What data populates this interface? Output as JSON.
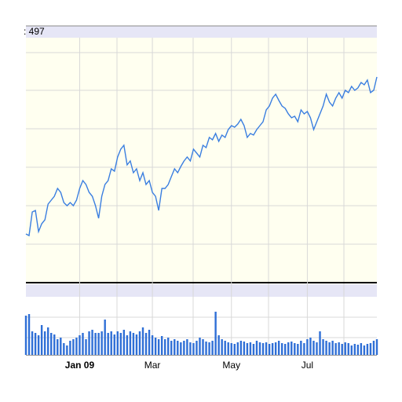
{
  "chart_data": [
    {
      "type": "line",
      "title": ": 497",
      "color": "#3a7ee0",
      "xlim": [
        0,
        111
      ],
      "ylim": [
        0,
        312
      ],
      "xticks": [
        {
          "value": 17,
          "label": "Jan 09"
        },
        {
          "value": 40,
          "label": "Mar"
        },
        {
          "value": 65,
          "label": "May"
        },
        {
          "value": 89,
          "label": "Jul"
        }
      ],
      "values": [
        62,
        60,
        90,
        92,
        65,
        75,
        80,
        100,
        105,
        110,
        120,
        115,
        102,
        98,
        102,
        98,
        105,
        120,
        130,
        125,
        115,
        110,
        98,
        82,
        110,
        125,
        130,
        145,
        142,
        160,
        170,
        175,
        150,
        155,
        140,
        145,
        130,
        140,
        125,
        130,
        115,
        110,
        92,
        120,
        120,
        125,
        135,
        145,
        140,
        148,
        155,
        160,
        155,
        170,
        165,
        160,
        175,
        172,
        185,
        182,
        190,
        180,
        188,
        185,
        195,
        200,
        198,
        202,
        208,
        200,
        185,
        190,
        188,
        195,
        200,
        205,
        220,
        225,
        235,
        240,
        232,
        225,
        222,
        215,
        210,
        212,
        205,
        220,
        215,
        218,
        210,
        195,
        205,
        215,
        225,
        240,
        230,
        225,
        235,
        242,
        235,
        245,
        242,
        250,
        245,
        248,
        255,
        252,
        258,
        242,
        245,
        262
      ]
    },
    {
      "type": "bar",
      "color": "#2f6fd6",
      "xlim": [
        0,
        111
      ],
      "ylim": [
        0,
        74
      ],
      "values": [
        50,
        52,
        30,
        28,
        25,
        38,
        30,
        35,
        28,
        26,
        20,
        22,
        15,
        12,
        18,
        20,
        22,
        25,
        28,
        20,
        30,
        32,
        28,
        28,
        30,
        45,
        28,
        30,
        26,
        30,
        28,
        32,
        25,
        30,
        28,
        26,
        30,
        35,
        28,
        32,
        25,
        22,
        20,
        24,
        20,
        22,
        18,
        20,
        18,
        16,
        18,
        20,
        16,
        15,
        18,
        22,
        20,
        17,
        16,
        18,
        55,
        25,
        20,
        18,
        16,
        15,
        14,
        16,
        18,
        17,
        15,
        16,
        14,
        18,
        16,
        15,
        16,
        14,
        15,
        16,
        18,
        15,
        14,
        16,
        17,
        15,
        14,
        18,
        15,
        20,
        22,
        18,
        16,
        30,
        20,
        18,
        16,
        18,
        15,
        16,
        14,
        16,
        15,
        12,
        14,
        13,
        15,
        12,
        14,
        15,
        18,
        20
      ]
    }
  ]
}
